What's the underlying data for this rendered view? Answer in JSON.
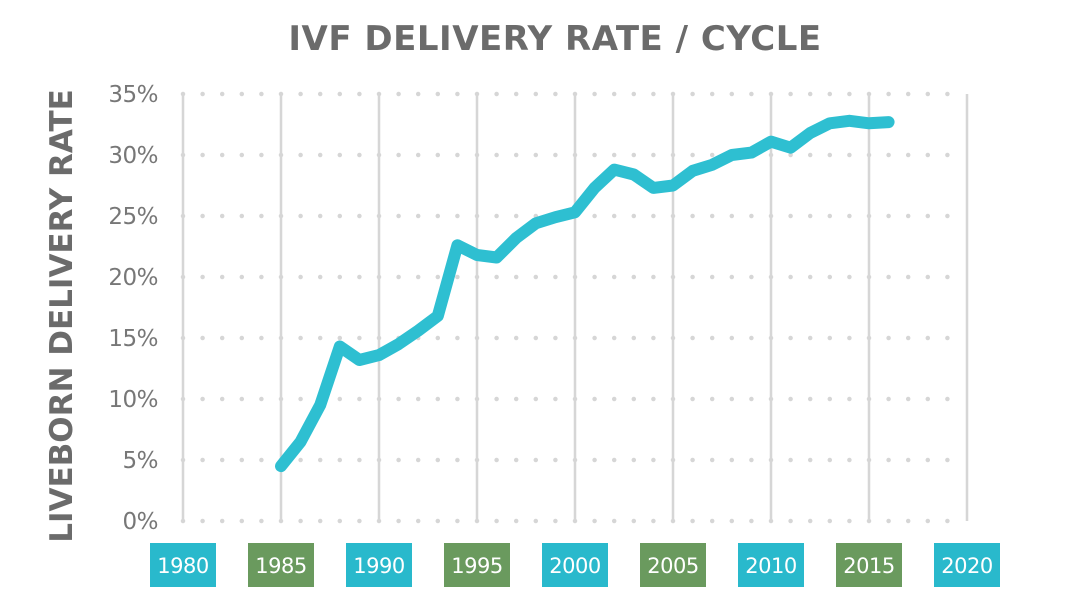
{
  "colors": {
    "line": "#2ebfd1",
    "tick_box_teal": "#29b9cc",
    "tick_box_green": "#6a9a5e",
    "grid": "#d6d6d6",
    "text": "#6b6b6b"
  },
  "chart_data": {
    "type": "line",
    "title": "IVF DELIVERY RATE / CYCLE",
    "xlabel": "",
    "ylabel": "LIVEBORN DELIVERY RATE",
    "xlim": [
      1980,
      2020
    ],
    "ylim": [
      0,
      35
    ],
    "xticks": [
      {
        "value": 1980,
        "label": "1980",
        "color": "teal"
      },
      {
        "value": 1985,
        "label": "1985",
        "color": "green"
      },
      {
        "value": 1990,
        "label": "1990",
        "color": "teal"
      },
      {
        "value": 1995,
        "label": "1995",
        "color": "green"
      },
      {
        "value": 2000,
        "label": "2000",
        "color": "teal"
      },
      {
        "value": 2005,
        "label": "2005",
        "color": "green"
      },
      {
        "value": 2010,
        "label": "2010",
        "color": "teal"
      },
      {
        "value": 2015,
        "label": "2015",
        "color": "green"
      },
      {
        "value": 2020,
        "label": "2020",
        "color": "teal"
      }
    ],
    "yticks": [
      {
        "value": 0,
        "label": "0%"
      },
      {
        "value": 5,
        "label": "5%"
      },
      {
        "value": 10,
        "label": "10%"
      },
      {
        "value": 15,
        "label": "15%"
      },
      {
        "value": 20,
        "label": "20%"
      },
      {
        "value": 25,
        "label": "25%"
      },
      {
        "value": 30,
        "label": "30%"
      },
      {
        "value": 35,
        "label": "35%"
      }
    ],
    "grid": true,
    "series": [
      {
        "x": [
          1985,
          1986,
          1987,
          1988,
          1989,
          1990,
          1991,
          1992,
          1993,
          1994,
          1995,
          1996,
          1997,
          1998,
          1999,
          2000,
          2001,
          2002,
          2003,
          2004,
          2005,
          2006,
          2007,
          2008,
          2009,
          2010,
          2011,
          2012,
          2013,
          2014,
          2015,
          2016
        ],
        "y": [
          4.5,
          6.5,
          9.5,
          14.3,
          13.2,
          13.6,
          14.5,
          15.6,
          16.8,
          22.6,
          21.8,
          21.6,
          23.2,
          24.4,
          24.9,
          25.3,
          27.3,
          28.8,
          28.4,
          27.3,
          27.5,
          28.7,
          29.2,
          30.0,
          30.2,
          31.1,
          30.6,
          31.8,
          32.6,
          32.8,
          32.6,
          32.7
        ]
      }
    ]
  }
}
